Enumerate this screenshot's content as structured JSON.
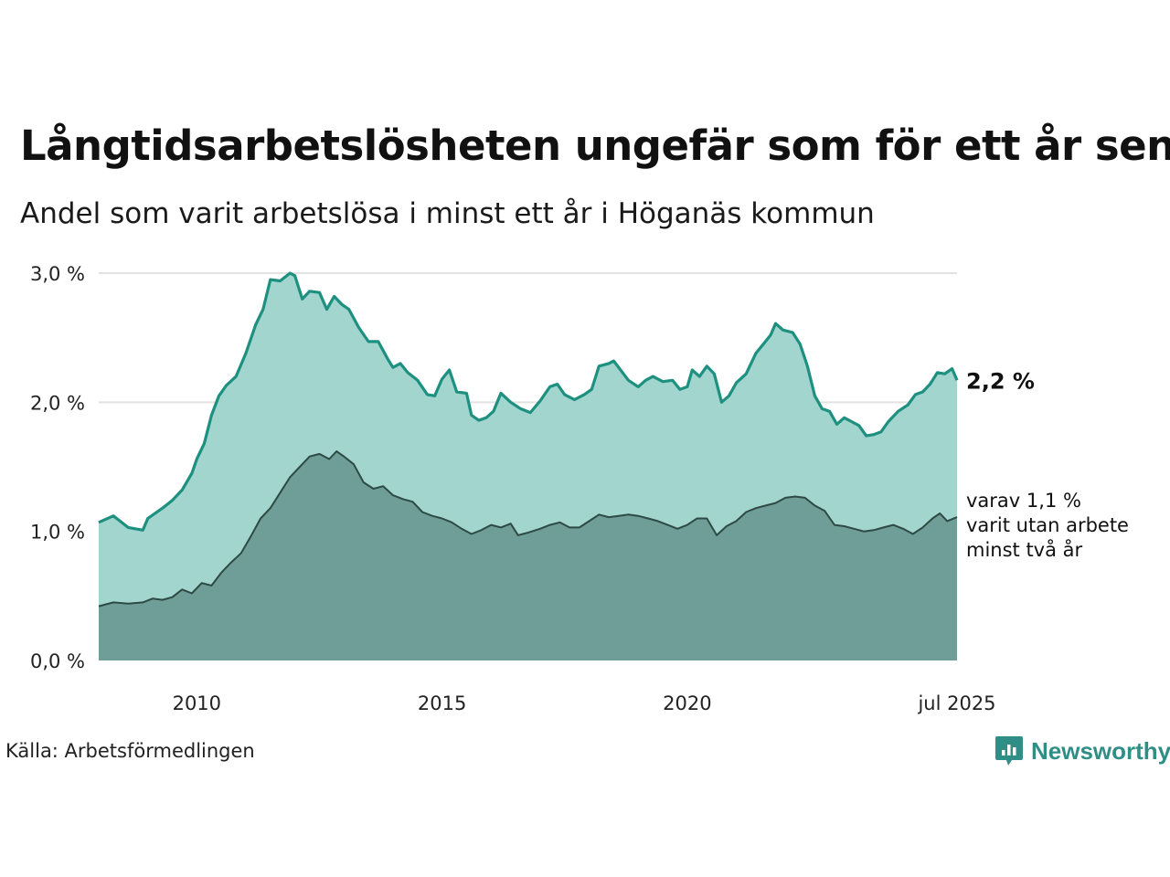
{
  "header": {
    "title": "Långtidsarbetslösheten ungefär som för ett år sen",
    "subtitle": "Andel som varit arbetslösa i minst ett år i Höganäs kommun"
  },
  "footer": {
    "source": "Källa: Arbetsförmedlingen",
    "brand": "Newsworthy"
  },
  "colors": {
    "series1_fill": "#a3d5cf",
    "series1_line": "#1d9080",
    "series2_fill": "#6f9e98",
    "series2_line": "#2e4a45",
    "grid": "#e2e2e2",
    "brand": "#2f8f86"
  },
  "chart_data": {
    "type": "area",
    "x_range": [
      2008.0,
      2025.5
    ],
    "ylim": [
      0,
      3.0
    ],
    "y_ticks": [
      {
        "value": 0,
        "label": "0,0 %"
      },
      {
        "value": 1,
        "label": "1,0 %"
      },
      {
        "value": 2,
        "label": "2,0 %"
      },
      {
        "value": 3,
        "label": "3,0 %"
      }
    ],
    "x_ticks": [
      {
        "value": 2010,
        "label": "2010"
      },
      {
        "value": 2015,
        "label": "2015"
      },
      {
        "value": 2020,
        "label": "2020"
      },
      {
        "value": 2025.5,
        "label": "jul 2025"
      }
    ],
    "series": [
      {
        "key": "total",
        "end_label": "2,2 %",
        "points": [
          [
            2008.0,
            1.07
          ],
          [
            2008.3,
            1.12
          ],
          [
            2008.6,
            1.03
          ],
          [
            2008.9,
            1.01
          ],
          [
            2009.0,
            1.1
          ],
          [
            2009.3,
            1.18
          ],
          [
            2009.5,
            1.24
          ],
          [
            2009.7,
            1.32
          ],
          [
            2009.9,
            1.45
          ],
          [
            2010.0,
            1.56
          ],
          [
            2010.15,
            1.68
          ],
          [
            2010.3,
            1.9
          ],
          [
            2010.45,
            2.05
          ],
          [
            2010.6,
            2.13
          ],
          [
            2010.8,
            2.2
          ],
          [
            2011.0,
            2.38
          ],
          [
            2011.2,
            2.6
          ],
          [
            2011.35,
            2.72
          ],
          [
            2011.5,
            2.95
          ],
          [
            2011.7,
            2.94
          ],
          [
            2011.9,
            3.0
          ],
          [
            2012.0,
            2.98
          ],
          [
            2012.15,
            2.8
          ],
          [
            2012.3,
            2.86
          ],
          [
            2012.5,
            2.85
          ],
          [
            2012.65,
            2.72
          ],
          [
            2012.8,
            2.82
          ],
          [
            2012.95,
            2.76
          ],
          [
            2013.1,
            2.72
          ],
          [
            2013.3,
            2.58
          ],
          [
            2013.5,
            2.47
          ],
          [
            2013.7,
            2.47
          ],
          [
            2013.9,
            2.33
          ],
          [
            2014.0,
            2.27
          ],
          [
            2014.15,
            2.3
          ],
          [
            2014.3,
            2.23
          ],
          [
            2014.5,
            2.17
          ],
          [
            2014.7,
            2.06
          ],
          [
            2014.85,
            2.05
          ],
          [
            2015.0,
            2.18
          ],
          [
            2015.15,
            2.25
          ],
          [
            2015.3,
            2.08
          ],
          [
            2015.5,
            2.07
          ],
          [
            2015.6,
            1.9
          ],
          [
            2015.75,
            1.86
          ],
          [
            2015.9,
            1.88
          ],
          [
            2016.05,
            1.93
          ],
          [
            2016.2,
            2.07
          ],
          [
            2016.4,
            2.0
          ],
          [
            2016.6,
            1.95
          ],
          [
            2016.8,
            1.92
          ],
          [
            2017.0,
            2.01
          ],
          [
            2017.2,
            2.12
          ],
          [
            2017.35,
            2.14
          ],
          [
            2017.5,
            2.06
          ],
          [
            2017.7,
            2.02
          ],
          [
            2017.9,
            2.06
          ],
          [
            2018.05,
            2.1
          ],
          [
            2018.2,
            2.28
          ],
          [
            2018.4,
            2.3
          ],
          [
            2018.5,
            2.32
          ],
          [
            2018.6,
            2.27
          ],
          [
            2018.8,
            2.17
          ],
          [
            2019.0,
            2.12
          ],
          [
            2019.15,
            2.17
          ],
          [
            2019.3,
            2.2
          ],
          [
            2019.5,
            2.16
          ],
          [
            2019.7,
            2.17
          ],
          [
            2019.85,
            2.1
          ],
          [
            2020.0,
            2.12
          ],
          [
            2020.1,
            2.25
          ],
          [
            2020.25,
            2.2
          ],
          [
            2020.4,
            2.28
          ],
          [
            2020.55,
            2.22
          ],
          [
            2020.7,
            2.0
          ],
          [
            2020.85,
            2.05
          ],
          [
            2021.0,
            2.15
          ],
          [
            2021.2,
            2.22
          ],
          [
            2021.4,
            2.38
          ],
          [
            2021.55,
            2.45
          ],
          [
            2021.7,
            2.52
          ],
          [
            2021.8,
            2.61
          ],
          [
            2021.95,
            2.56
          ],
          [
            2022.15,
            2.54
          ],
          [
            2022.3,
            2.45
          ],
          [
            2022.45,
            2.28
          ],
          [
            2022.6,
            2.05
          ],
          [
            2022.75,
            1.95
          ],
          [
            2022.9,
            1.93
          ],
          [
            2023.05,
            1.83
          ],
          [
            2023.2,
            1.88
          ],
          [
            2023.35,
            1.85
          ],
          [
            2023.5,
            1.82
          ],
          [
            2023.65,
            1.74
          ],
          [
            2023.8,
            1.75
          ],
          [
            2023.95,
            1.77
          ],
          [
            2024.1,
            1.85
          ],
          [
            2024.3,
            1.93
          ],
          [
            2024.5,
            1.98
          ],
          [
            2024.65,
            2.06
          ],
          [
            2024.8,
            2.08
          ],
          [
            2024.95,
            2.14
          ],
          [
            2025.1,
            2.23
          ],
          [
            2025.25,
            2.22
          ],
          [
            2025.4,
            2.26
          ],
          [
            2025.5,
            2.17
          ]
        ]
      },
      {
        "key": "two_years",
        "end_label": "varav 1,1 %\nvarit utan arbete\nminst två år",
        "points": [
          [
            2008.0,
            0.42
          ],
          [
            2008.3,
            0.45
          ],
          [
            2008.6,
            0.44
          ],
          [
            2008.9,
            0.45
          ],
          [
            2009.1,
            0.48
          ],
          [
            2009.3,
            0.47
          ],
          [
            2009.5,
            0.49
          ],
          [
            2009.7,
            0.55
          ],
          [
            2009.9,
            0.52
          ],
          [
            2010.1,
            0.6
          ],
          [
            2010.3,
            0.58
          ],
          [
            2010.5,
            0.68
          ],
          [
            2010.7,
            0.76
          ],
          [
            2010.9,
            0.83
          ],
          [
            2011.1,
            0.96
          ],
          [
            2011.3,
            1.1
          ],
          [
            2011.5,
            1.18
          ],
          [
            2011.7,
            1.3
          ],
          [
            2011.9,
            1.42
          ],
          [
            2012.1,
            1.5
          ],
          [
            2012.3,
            1.58
          ],
          [
            2012.5,
            1.6
          ],
          [
            2012.7,
            1.56
          ],
          [
            2012.85,
            1.62
          ],
          [
            2013.0,
            1.58
          ],
          [
            2013.2,
            1.52
          ],
          [
            2013.4,
            1.38
          ],
          [
            2013.6,
            1.33
          ],
          [
            2013.8,
            1.35
          ],
          [
            2014.0,
            1.28
          ],
          [
            2014.2,
            1.25
          ],
          [
            2014.4,
            1.23
          ],
          [
            2014.6,
            1.15
          ],
          [
            2014.8,
            1.12
          ],
          [
            2015.0,
            1.1
          ],
          [
            2015.2,
            1.07
          ],
          [
            2015.4,
            1.02
          ],
          [
            2015.6,
            0.98
          ],
          [
            2015.8,
            1.01
          ],
          [
            2016.0,
            1.05
          ],
          [
            2016.2,
            1.03
          ],
          [
            2016.4,
            1.06
          ],
          [
            2016.55,
            0.97
          ],
          [
            2016.75,
            0.99
          ],
          [
            2017.0,
            1.02
          ],
          [
            2017.2,
            1.05
          ],
          [
            2017.4,
            1.07
          ],
          [
            2017.6,
            1.03
          ],
          [
            2017.8,
            1.03
          ],
          [
            2018.0,
            1.08
          ],
          [
            2018.2,
            1.13
          ],
          [
            2018.4,
            1.11
          ],
          [
            2018.6,
            1.12
          ],
          [
            2018.8,
            1.13
          ],
          [
            2019.0,
            1.12
          ],
          [
            2019.2,
            1.1
          ],
          [
            2019.4,
            1.08
          ],
          [
            2019.6,
            1.05
          ],
          [
            2019.8,
            1.02
          ],
          [
            2020.0,
            1.05
          ],
          [
            2020.2,
            1.1
          ],
          [
            2020.4,
            1.1
          ],
          [
            2020.6,
            0.97
          ],
          [
            2020.8,
            1.04
          ],
          [
            2021.0,
            1.08
          ],
          [
            2021.2,
            1.15
          ],
          [
            2021.4,
            1.18
          ],
          [
            2021.6,
            1.2
          ],
          [
            2021.8,
            1.22
          ],
          [
            2022.0,
            1.26
          ],
          [
            2022.2,
            1.27
          ],
          [
            2022.4,
            1.26
          ],
          [
            2022.6,
            1.2
          ],
          [
            2022.8,
            1.16
          ],
          [
            2023.0,
            1.05
          ],
          [
            2023.2,
            1.04
          ],
          [
            2023.4,
            1.02
          ],
          [
            2023.6,
            1.0
          ],
          [
            2023.8,
            1.01
          ],
          [
            2024.0,
            1.03
          ],
          [
            2024.2,
            1.05
          ],
          [
            2024.4,
            1.02
          ],
          [
            2024.6,
            0.98
          ],
          [
            2024.8,
            1.03
          ],
          [
            2025.0,
            1.1
          ],
          [
            2025.15,
            1.14
          ],
          [
            2025.3,
            1.08
          ],
          [
            2025.5,
            1.11
          ]
        ]
      }
    ]
  }
}
